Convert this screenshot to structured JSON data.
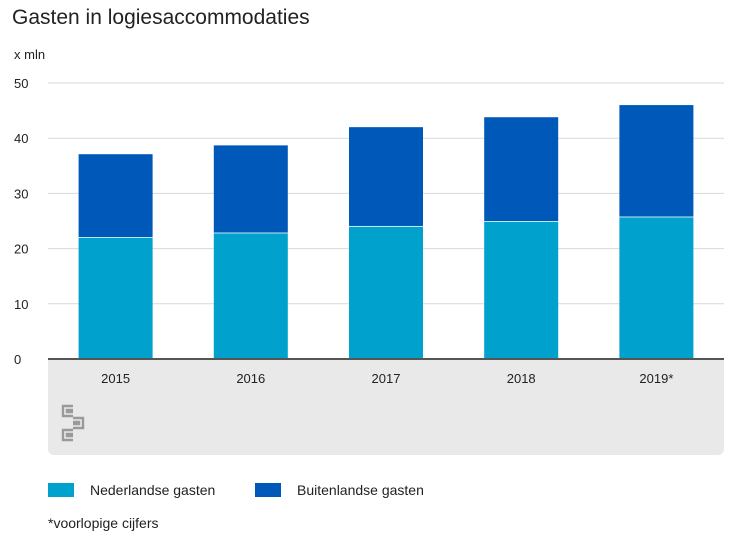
{
  "title": "Gasten in logiesaccommodaties",
  "unit_label": "x mln",
  "note": "*voorlopige cijfers",
  "logo": "cbs-logo",
  "colors": {
    "nederlandse": "#00a1cd",
    "buitenlandse": "#0058b8",
    "footer": "#e9e9e9",
    "grid": "#d9d9d9",
    "axis": "#555555"
  },
  "chart_data": {
    "type": "bar",
    "stacked": true,
    "categories": [
      "2015",
      "2016",
      "2017",
      "2018",
      "2019*"
    ],
    "series": [
      {
        "name": "Nederlandse gasten",
        "color": "#00a1cd",
        "values": [
          22.1,
          22.9,
          24.1,
          25.0,
          25.8
        ]
      },
      {
        "name": "Buitenlandse gasten",
        "color": "#0058b8",
        "values": [
          15.0,
          15.8,
          17.9,
          18.8,
          20.2
        ]
      }
    ],
    "ylim": [
      0,
      50
    ],
    "yticks": [
      "0",
      "10",
      "20",
      "30",
      "40",
      "50"
    ],
    "grid": true,
    "legend_position": "bottom"
  }
}
